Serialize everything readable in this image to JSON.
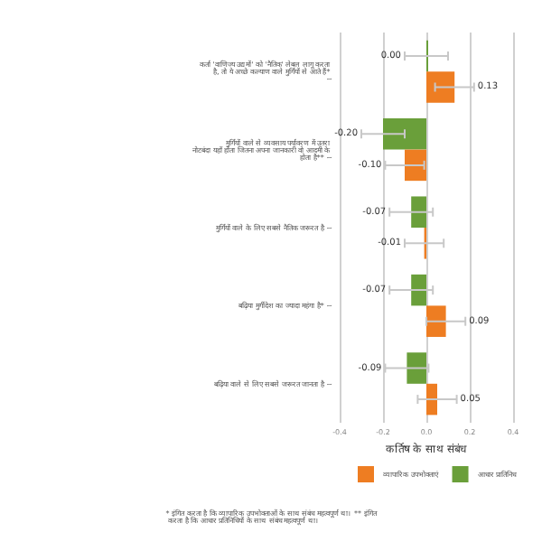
{
  "chart_data": {
    "type": "bar",
    "orientation": "horizontal",
    "categories": [
      "कर्ता 'वाणिज्य उद्यमों' को 'नैतिक' लेबल लागू करता है, तो ये अच्छे कल्याण वाले मुर्गियों से आते हैं* ~",
      "मुर्गियों वाले से व्यवसाय पर्यावरण में उतरा नोटबंदा यहाँ होता जितना अपना जानकारी वो आदमी के होता है** ~",
      "मुर्गियों वाले के लिए सबसे नैतिक जरूरत है ~",
      "बढ़िया मुर्गीदेश का ज्यादा महंगा है* ~",
      "बढ़िया वाले से लिए सबसे जरूरत जानता है ~"
    ],
    "series": [
      {
        "name": "आधार प्रातिनिध",
        "color": "#6a9f3a",
        "values": [
          0.0,
          -0.2,
          -0.07,
          -0.07,
          -0.09
        ],
        "errors": [
          0.1,
          0.1,
          0.1,
          0.1,
          0.1
        ],
        "value_labels": [
          "0.00",
          "-0.20",
          "-0.07",
          "-0.07",
          "-0.09"
        ]
      },
      {
        "name": "व्यापारिक उपभोक्ताएं",
        "color": "#ee7d22",
        "values": [
          0.13,
          -0.1,
          -0.01,
          0.09,
          0.05
        ],
        "errors": [
          0.09,
          0.09,
          0.09,
          0.09,
          0.09
        ],
        "value_labels": [
          "0.13",
          "-0.10",
          "-0.01",
          "0.09",
          "0.05"
        ]
      }
    ],
    "xlabel": "कर्तिष के साथ संबंध",
    "xlim": [
      -0.4,
      0.4
    ],
    "xticks": [
      {
        "value": -0.4,
        "label": "-0.4"
      },
      {
        "value": -0.2,
        "label": "-0.2"
      },
      {
        "value": 0,
        "label": "0.0"
      },
      {
        "value": 0.2,
        "label": "0.2"
      },
      {
        "value": 0.4,
        "label": "0.4"
      }
    ],
    "grid": "x",
    "legend": "bottom",
    "annotations": [
      "* इंगित करता है कि व्यापारिक उपभोक्ताओं के साथ संबंध महत्वपूर्ण था। ** इंगित करता है कि आधार प्रतिनिधियों के साथ संबंध महत्वपूर्ण था।"
    ]
  }
}
